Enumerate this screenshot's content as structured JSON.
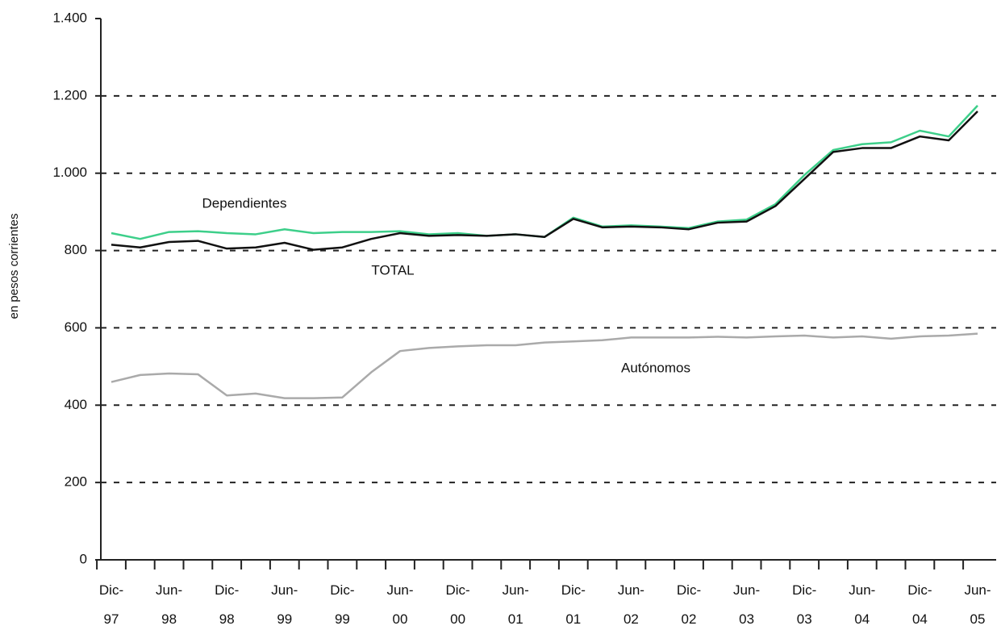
{
  "chart_data": {
    "type": "line",
    "y_label": "en pesos corrientes",
    "categories": [
      "Dic-\n97",
      null,
      "Jun-\n98",
      null,
      "Dic-\n98",
      null,
      "Jun-\n99",
      null,
      "Dic-\n99",
      null,
      "Jun-\n00",
      null,
      "Dic-\n00",
      null,
      "Jun-\n01",
      null,
      "Dic-\n01",
      null,
      "Jun-\n02",
      null,
      "Dic-\n02",
      null,
      "Jun-\n03",
      null,
      "Dic-\n03",
      null,
      "Jun-\n04",
      null,
      "Dic-\n04",
      null,
      "Jun-\n05"
    ],
    "series": [
      {
        "name": "Dependientes",
        "color": "#3dcf8a",
        "values": [
          845,
          830,
          848,
          850,
          845,
          842,
          855,
          845,
          848,
          848,
          850,
          842,
          845,
          838,
          842,
          835,
          885,
          862,
          865,
          862,
          858,
          875,
          880,
          920,
          995,
          1060,
          1075,
          1080,
          1110,
          1095,
          1175
        ]
      },
      {
        "name": "TOTAL",
        "color": "#111111",
        "values": [
          815,
          808,
          822,
          825,
          805,
          808,
          820,
          802,
          808,
          830,
          845,
          838,
          840,
          838,
          842,
          835,
          882,
          860,
          862,
          860,
          855,
          872,
          875,
          915,
          985,
          1055,
          1065,
          1065,
          1095,
          1085,
          1160
        ]
      },
      {
        "name": "Autónomos",
        "color": "#aaaaaa",
        "values": [
          460,
          478,
          482,
          480,
          425,
          430,
          418,
          418,
          420,
          485,
          540,
          548,
          552,
          555,
          555,
          562,
          565,
          568,
          575,
          575,
          575,
          577,
          575,
          578,
          580,
          575,
          578,
          572,
          578,
          580,
          585
        ]
      }
    ],
    "ylim": [
      0,
      1400
    ],
    "yticks": [
      0,
      200,
      400,
      600,
      800,
      {
        "value": 1000,
        "label": "1.000"
      },
      {
        "value": 1200,
        "label": "1.200"
      },
      {
        "value": 1400,
        "label": "1.400"
      }
    ],
    "grid": true
  }
}
